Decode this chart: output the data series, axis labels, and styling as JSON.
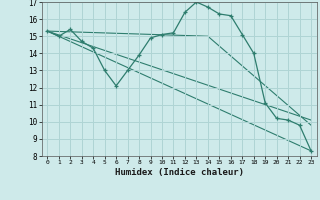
{
  "xlabel": "Humidex (Indice chaleur)",
  "bg_color": "#ceeaea",
  "grid_color": "#afd4d4",
  "line_color": "#2e7d6e",
  "xlim": [
    -0.5,
    23.5
  ],
  "ylim": [
    8,
    17
  ],
  "yticks": [
    8,
    9,
    10,
    11,
    12,
    13,
    14,
    15,
    16,
    17
  ],
  "xticks": [
    0,
    1,
    2,
    3,
    4,
    5,
    6,
    7,
    8,
    9,
    10,
    11,
    12,
    13,
    14,
    15,
    16,
    17,
    18,
    19,
    20,
    21,
    22,
    23
  ],
  "line1_x": [
    0,
    1,
    2,
    3,
    4,
    5,
    6,
    7,
    8,
    9,
    10,
    11,
    12,
    13,
    14,
    15,
    16,
    17,
    18,
    19,
    20,
    21,
    22,
    23
  ],
  "line1_y": [
    15.3,
    15.0,
    15.4,
    14.7,
    14.3,
    13.0,
    12.1,
    13.0,
    13.9,
    14.9,
    15.1,
    15.2,
    16.4,
    17.0,
    16.7,
    16.3,
    16.2,
    15.1,
    14.0,
    11.1,
    10.2,
    10.1,
    9.8,
    8.3
  ],
  "line2_x": [
    0,
    23
  ],
  "line2_y": [
    15.3,
    10.1
  ],
  "line3_x": [
    0,
    23
  ],
  "line3_y": [
    15.3,
    8.3
  ],
  "line4_x": [
    0,
    14,
    23
  ],
  "line4_y": [
    15.3,
    15.0,
    9.8
  ]
}
